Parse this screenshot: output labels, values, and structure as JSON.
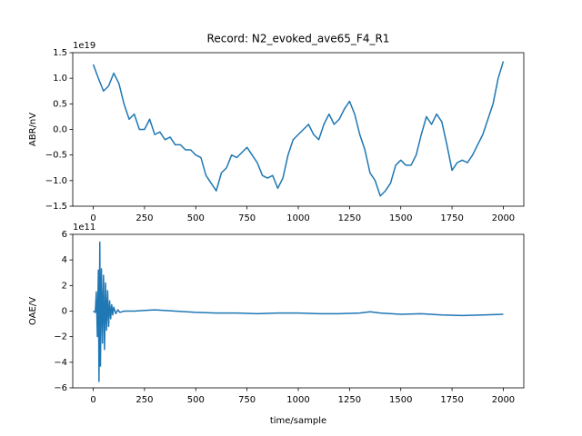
{
  "chart_data": [
    {
      "type": "line",
      "title": "Record: N2_evoked_ave65_F4_R1",
      "ylabel": "ABR/nV",
      "offset_text": "1e19",
      "color": "#1f77b4",
      "x": [
        0,
        25,
        50,
        75,
        100,
        125,
        150,
        175,
        200,
        225,
        250,
        275,
        300,
        325,
        350,
        375,
        400,
        425,
        450,
        475,
        500,
        525,
        550,
        575,
        600,
        625,
        650,
        675,
        700,
        725,
        750,
        775,
        800,
        825,
        850,
        875,
        900,
        925,
        950,
        975,
        1000,
        1025,
        1050,
        1075,
        1100,
        1125,
        1150,
        1175,
        1200,
        1225,
        1250,
        1275,
        1300,
        1325,
        1350,
        1375,
        1400,
        1425,
        1450,
        1475,
        1500,
        1525,
        1550,
        1575,
        1600,
        1625,
        1650,
        1675,
        1700,
        1725,
        1750,
        1775,
        1800,
        1825,
        1850,
        1875,
        1900,
        1925,
        1950,
        1975,
        2000
      ],
      "values": [
        1.27,
        1.0,
        0.75,
        0.85,
        1.1,
        0.9,
        0.5,
        0.2,
        0.3,
        0.0,
        0.0,
        0.2,
        -0.1,
        -0.05,
        -0.2,
        -0.15,
        -0.3,
        -0.3,
        -0.4,
        -0.4,
        -0.5,
        -0.55,
        -0.9,
        -1.05,
        -1.2,
        -0.85,
        -0.75,
        -0.5,
        -0.55,
        -0.45,
        -0.35,
        -0.5,
        -0.65,
        -0.9,
        -0.95,
        -0.9,
        -1.15,
        -0.95,
        -0.5,
        -0.2,
        -0.1,
        0.0,
        0.1,
        -0.1,
        -0.2,
        0.1,
        0.3,
        0.1,
        0.2,
        0.4,
        0.55,
        0.3,
        -0.1,
        -0.4,
        -0.85,
        -1.0,
        -1.3,
        -1.2,
        -1.05,
        -0.7,
        -0.6,
        -0.7,
        -0.7,
        -0.5,
        -0.1,
        0.25,
        0.1,
        0.3,
        0.15,
        -0.3,
        -0.8,
        -0.65,
        -0.6,
        -0.65,
        -0.5,
        -0.3,
        -0.1,
        0.2,
        0.5,
        1.0,
        1.33
      ],
      "xlim": [
        -100,
        2100
      ],
      "xticks": [
        0,
        250,
        500,
        750,
        1000,
        1250,
        1500,
        1750,
        2000
      ],
      "ylim": [
        -1.5,
        1.5
      ],
      "yticks": [
        {
          "value": -1.5,
          "label": "−1.5"
        },
        {
          "value": -1,
          "label": "−1.0"
        },
        {
          "value": -0.5,
          "label": "−0.5"
        },
        {
          "value": 0,
          "label": "0.0"
        },
        0.5,
        {
          "value": 1,
          "label": "1.0"
        },
        1.5
      ]
    },
    {
      "type": "line",
      "xlabel": "time/sample",
      "ylabel": "OAE/V",
      "offset_text": "1e11",
      "color": "#1f77b4",
      "x": [
        0,
        10,
        15,
        20,
        25,
        28,
        32,
        35,
        40,
        45,
        50,
        55,
        60,
        65,
        70,
        75,
        80,
        85,
        90,
        95,
        100,
        110,
        120,
        130,
        150,
        200,
        250,
        300,
        400,
        500,
        600,
        700,
        800,
        900,
        1000,
        1100,
        1200,
        1300,
        1350,
        1400,
        1500,
        1600,
        1700,
        1800,
        1900,
        2000
      ],
      "values": [
        0,
        -0.1,
        1.5,
        -2,
        3.2,
        -5.5,
        5.4,
        -4.3,
        3.3,
        -2.5,
        2.8,
        -3,
        2.2,
        -1.5,
        1.6,
        -1.2,
        0.8,
        -0.6,
        0.5,
        -0.3,
        0.3,
        -0.2,
        0.1,
        -0.1,
        0,
        0,
        0.05,
        0.1,
        0,
        -0.1,
        -0.15,
        -0.15,
        -0.2,
        -0.15,
        -0.15,
        -0.2,
        -0.2,
        -0.15,
        -0.05,
        -0.15,
        -0.25,
        -0.2,
        -0.3,
        -0.35,
        -0.3,
        -0.25
      ],
      "xlim": [
        -100,
        2100
      ],
      "xticks": [
        0,
        250,
        500,
        750,
        1000,
        1250,
        1500,
        1750,
        2000
      ],
      "ylim": [
        -6,
        6
      ],
      "yticks": [
        {
          "value": -6,
          "label": "−6"
        },
        {
          "value": -4,
          "label": "−4"
        },
        {
          "value": -2,
          "label": "−2"
        },
        0,
        2,
        4,
        6
      ]
    }
  ]
}
